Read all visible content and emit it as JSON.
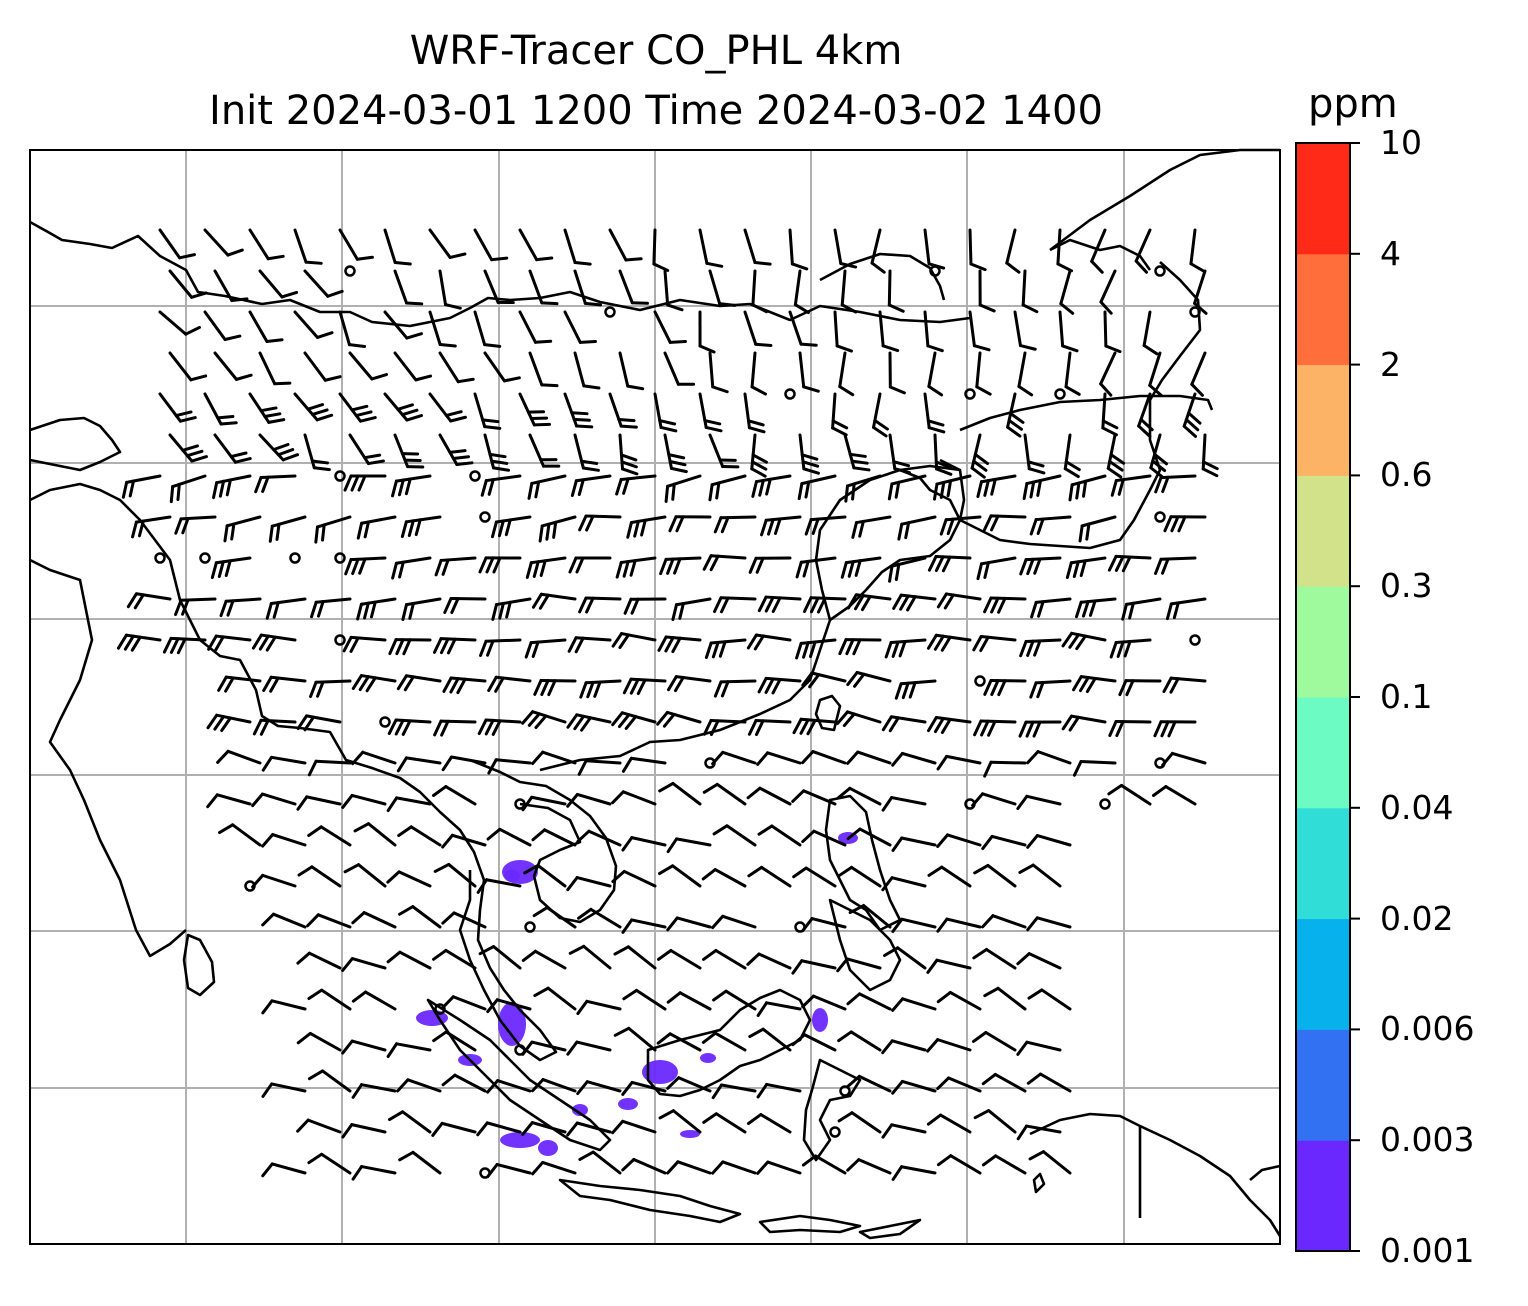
{
  "title": {
    "line1": "WRF-Tracer CO_PHL 4km",
    "line2": "Init 2024-03-01 1200 Time 2024-03-02 1400"
  },
  "colorbar": {
    "unit": "ppm",
    "levels": [
      "0.001",
      "0.003",
      "0.006",
      "0.02",
      "0.04",
      "0.1",
      "0.3",
      "0.6",
      "2",
      "4",
      "10"
    ],
    "colors": [
      "#6a28ff",
      "#3272f2",
      "#06b1ec",
      "#30ddd7",
      "#6cfbc3",
      "#9efa9c",
      "#d1e28b",
      "#fdb365",
      "#ff6e3b",
      "#ff2a18"
    ]
  },
  "map": {
    "variable": "CO_PHL tracer concentration",
    "overlay": "wind barbs",
    "coastlines": "black",
    "gridlines": "light-gray",
    "tracer_plume_color": "#6a28ff"
  }
}
